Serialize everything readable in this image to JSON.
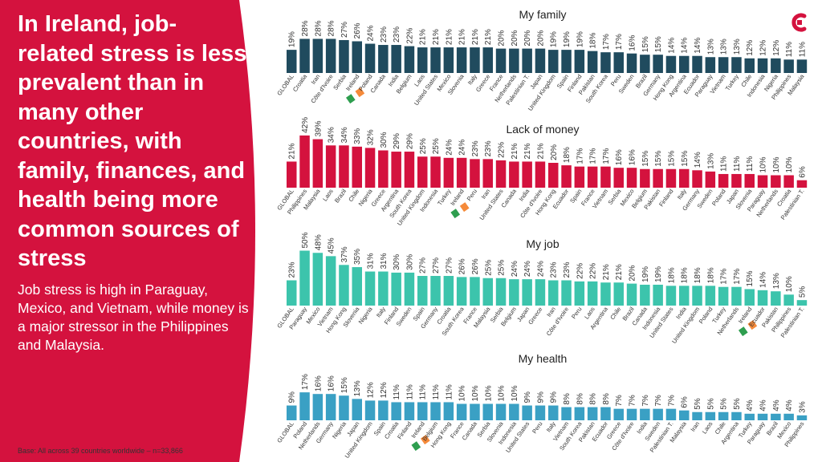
{
  "headline": "In Ireland, job-related stress is less prevalent than in many other countries, with family, finances, and health being more common sources of stress",
  "subtext": "Job stress is high in Paraguay, Mexico, and Vietnam, while money is a major stressor in the Philippines and Malaysia.",
  "base_note": "Base: All across 39 countries worldwide – n=33,866",
  "colors": {
    "accent": "#d4123e",
    "family": "#204b5e",
    "money": "#d4123e",
    "job": "#3cc4ac",
    "health": "#3aa0c4",
    "flag_green": "#2e9e4f",
    "flag_orange": "#f58a3a"
  },
  "chart_data": [
    {
      "type": "bar",
      "title": "My family",
      "categories": [
        "GLOBAL",
        "Croatia",
        "Iran",
        "Côte d'Ivoire",
        "Serbia",
        "Ireland",
        "Poland",
        "Canada",
        "India",
        "Belgium",
        "Laos",
        "United States",
        "Mexico",
        "Slovenia",
        "Italy",
        "Greece",
        "France",
        "Netherlands",
        "Palestinian T.",
        "Japan",
        "United Kingdom",
        "Spain",
        "Finland",
        "Pakistan",
        "South Korea",
        "Peru",
        "Sweden",
        "Brazil",
        "Germany",
        "Hong Kong",
        "Argentina",
        "Ecuador",
        "Paraguay",
        "Vietnam",
        "Turkey",
        "Chile",
        "Indonesia",
        "Nigeria",
        "Philippines",
        "Malaysia"
      ],
      "values": [
        19,
        28,
        28,
        28,
        27,
        26,
        24,
        23,
        23,
        22,
        21,
        21,
        21,
        21,
        21,
        21,
        20,
        20,
        20,
        20,
        19,
        19,
        19,
        18,
        17,
        17,
        16,
        15,
        15,
        14,
        14,
        14,
        13,
        13,
        13,
        12,
        12,
        12,
        11,
        11
      ],
      "highlight": "Ireland",
      "unit": "%"
    },
    {
      "type": "bar",
      "title": "Lack of money",
      "categories": [
        "GLOBAL",
        "Philippines",
        "Malaysia",
        "Laos",
        "Brazil",
        "Chile",
        "Nigeria",
        "Greece",
        "Argentina",
        "South Korea",
        "United Kingdom",
        "Indonesia",
        "Turkey",
        "Ireland",
        "Peru",
        "Iran",
        "United States",
        "Canada",
        "India",
        "Côte d'Ivoire",
        "Hong Kong",
        "Ecuador",
        "Spain",
        "France",
        "Vietnam",
        "Serbia",
        "Mexico",
        "Belgium",
        "Pakistan",
        "Finland",
        "Italy",
        "Germany",
        "Sweden",
        "Poland",
        "Japan",
        "Slovenia",
        "Paraguay",
        "Netherlands",
        "Croatia",
        "Palestinian T."
      ],
      "values": [
        21,
        42,
        39,
        34,
        34,
        33,
        32,
        30,
        29,
        29,
        25,
        25,
        24,
        24,
        23,
        23,
        22,
        21,
        21,
        21,
        20,
        18,
        17,
        17,
        17,
        16,
        16,
        15,
        15,
        15,
        15,
        14,
        13,
        11,
        11,
        11,
        10,
        10,
        10,
        6
      ],
      "highlight": "Ireland",
      "unit": "%"
    },
    {
      "type": "bar",
      "title": "My job",
      "categories": [
        "GLOBAL",
        "Paraguay",
        "Mexico",
        "Vietnam",
        "Hong Kong",
        "Slovenia",
        "Nigeria",
        "Italy",
        "Finland",
        "Sweden",
        "Spain",
        "Germany",
        "Croatia",
        "South Korea",
        "France",
        "Malaysia",
        "Serbia",
        "Belgium",
        "Japan",
        "Greece",
        "Iran",
        "Côte d'Ivoire",
        "Peru",
        "Laos",
        "Argentina",
        "Chile",
        "Brazil",
        "Canada",
        "Indonesia",
        "United States",
        "India",
        "United Kingdom",
        "Poland",
        "Turkey",
        "Netherlands",
        "Ireland",
        "Ecuador",
        "Pakistan",
        "Philippines",
        "Palestinian T."
      ],
      "values": [
        23,
        50,
        48,
        45,
        37,
        35,
        31,
        31,
        30,
        30,
        27,
        27,
        27,
        26,
        26,
        25,
        25,
        24,
        24,
        24,
        23,
        23,
        22,
        22,
        21,
        21,
        20,
        19,
        19,
        18,
        18,
        18,
        18,
        17,
        17,
        15,
        14,
        13,
        10,
        5
      ],
      "highlight": "Ireland",
      "unit": "%"
    },
    {
      "type": "bar",
      "title": "My health",
      "categories": [
        "GLOBAL",
        "Poland",
        "Netherlands",
        "Germany",
        "Nigeria",
        "Japan",
        "United Kingdom",
        "Spain",
        "Croatia",
        "Finland",
        "Ireland",
        "Belgium",
        "Hong Kong",
        "France",
        "Canada",
        "Serbia",
        "Slovenia",
        "Indonesia",
        "United States",
        "Peru",
        "Italy",
        "Vietnam",
        "South Korea",
        "Pakistan",
        "Ecuador",
        "Greece",
        "Côte d'Ivoire",
        "India",
        "Sweden",
        "Palestinian T.",
        "Malaysia",
        "Iran",
        "Laos",
        "Chile",
        "Argentina",
        "Turkey",
        "Paraguay",
        "Brazil",
        "Mexico",
        "Philippines"
      ],
      "values": [
        9,
        17,
        16,
        16,
        15,
        13,
        12,
        12,
        11,
        11,
        11,
        11,
        11,
        10,
        10,
        10,
        10,
        10,
        9,
        9,
        9,
        8,
        8,
        8,
        8,
        7,
        7,
        7,
        7,
        7,
        6,
        5,
        5,
        5,
        5,
        4,
        4,
        4,
        4,
        3
      ],
      "highlight": "Ireland",
      "unit": "%"
    }
  ]
}
